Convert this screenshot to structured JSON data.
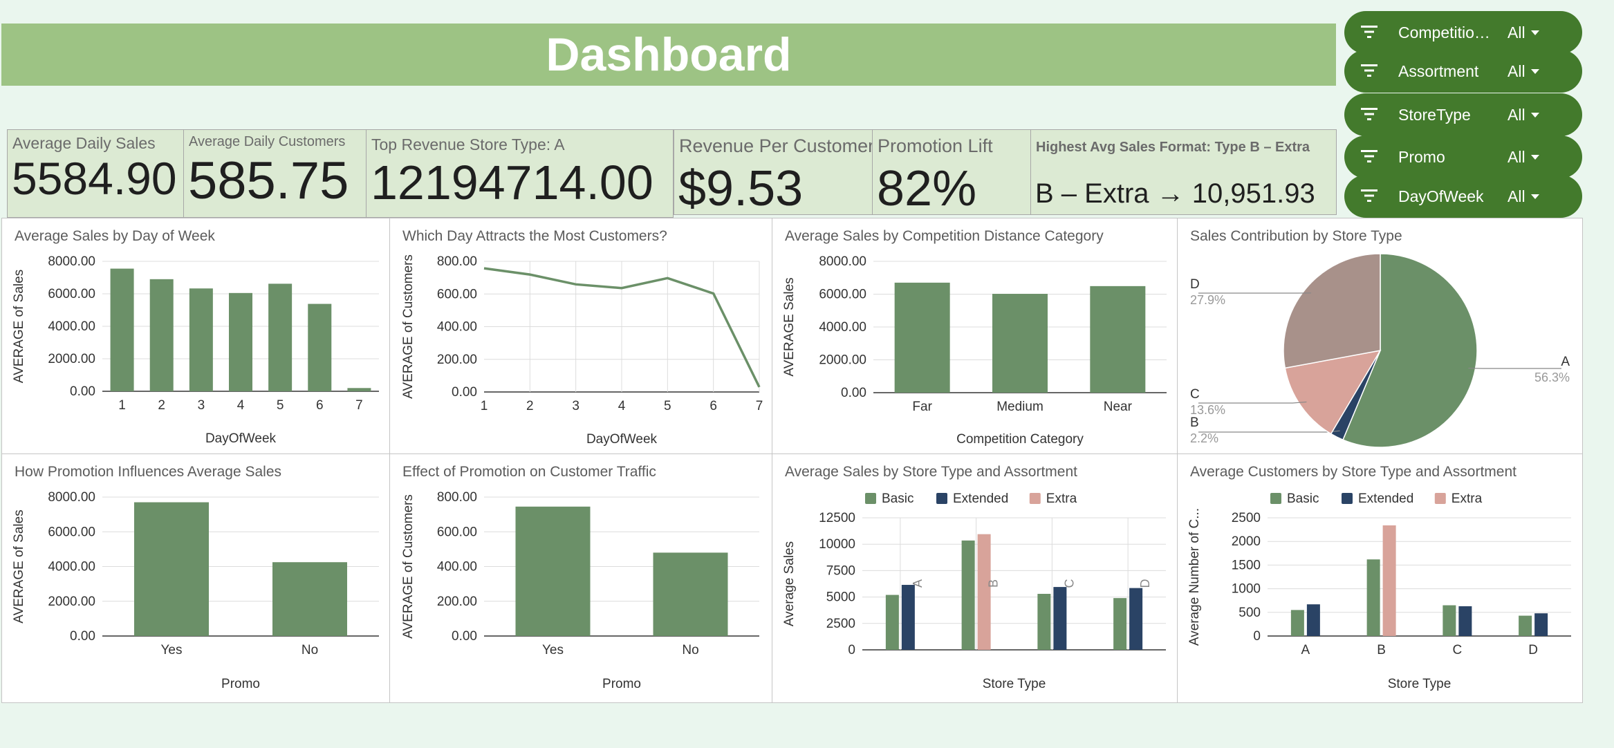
{
  "header": {
    "title": "Dashboard"
  },
  "filters": [
    {
      "label": "Competitio…",
      "value": "All",
      "icon": "filter-icon"
    },
    {
      "label": "Assortment",
      "value": "All",
      "icon": "filter-icon"
    },
    {
      "label": "StoreType",
      "value": "All",
      "icon": "filter-icon"
    },
    {
      "label": "Promo",
      "value": "All",
      "icon": "filter-icon"
    },
    {
      "label": "DayOfWeek",
      "value": "All",
      "icon": "filter-icon"
    }
  ],
  "kpis": [
    {
      "label": "Average Daily Sales",
      "value": "5584.90"
    },
    {
      "label": "Average Daily Customers",
      "value": "585.75"
    },
    {
      "label": "Top Revenue Store Type: A",
      "value": "12194714.00"
    },
    {
      "label": "Revenue Per Customer",
      "value": "$9.53"
    },
    {
      "label": "Promotion Lift",
      "value": "82%"
    },
    {
      "label": "Highest Avg Sales Format: Type B – Extra",
      "value": "B – Extra → 10,951.93"
    }
  ],
  "colors": {
    "green": "#6b9068",
    "navy": "#2a4365",
    "pink": "#d8a39a",
    "taupe": "#a8918a",
    "filter_bg": "#437a2c",
    "title_bg": "#9dc384",
    "kpi_bg": "#dcead3"
  },
  "chart_data": [
    {
      "id": "sales-by-dow",
      "type": "bar",
      "title": "Average Sales by Day of Week",
      "xlabel": "DayOfWeek",
      "ylabel": "AVERAGE of Sales",
      "categories": [
        "1",
        "2",
        "3",
        "4",
        "5",
        "6",
        "7"
      ],
      "values": [
        7550,
        6900,
        6330,
        6050,
        6620,
        5380,
        200
      ],
      "ylim": [
        0,
        8000
      ],
      "yticks": [
        "0.00",
        "2000.00",
        "4000.00",
        "6000.00",
        "8000.00"
      ]
    },
    {
      "id": "customers-by-dow",
      "type": "line",
      "title": "Which Day Attracts the Most Customers?",
      "xlabel": "DayOfWeek",
      "ylabel": "AVERAGE of Customers",
      "categories": [
        "1",
        "2",
        "3",
        "4",
        "5",
        "6",
        "7"
      ],
      "values": [
        757,
        719,
        659,
        636,
        697,
        603,
        30
      ],
      "ylim": [
        0,
        800
      ],
      "yticks": [
        "0.00",
        "200.00",
        "400.00",
        "600.00",
        "800.00"
      ]
    },
    {
      "id": "sales-by-competition",
      "type": "bar",
      "title": "Average Sales by Competition Distance Category",
      "xlabel": "Competition Category",
      "ylabel": "AVERAGE Sales",
      "categories": [
        "Far",
        "Medium",
        "Near"
      ],
      "values": [
        6700,
        6020,
        6490
      ],
      "ylim": [
        0,
        8000
      ],
      "yticks": [
        "0.00",
        "2000.00",
        "4000.00",
        "6000.00",
        "8000.00"
      ]
    },
    {
      "id": "sales-contribution",
      "type": "pie",
      "title": "Sales Contribution by Store Type",
      "slices": [
        {
          "label": "A",
          "value": 56.3,
          "pct": "56.3%",
          "color": "#6b9068"
        },
        {
          "label": "B",
          "value": 2.2,
          "pct": "2.2%",
          "color": "#2a4365"
        },
        {
          "label": "C",
          "value": 13.6,
          "pct": "13.6%",
          "color": "#d8a39a"
        },
        {
          "label": "D",
          "value": 27.9,
          "pct": "27.9%",
          "color": "#a8918a"
        }
      ]
    },
    {
      "id": "promo-sales",
      "type": "bar",
      "title": "How Promotion Influences Average Sales",
      "xlabel": "Promo",
      "ylabel": "AVERAGE of Sales",
      "categories": [
        "Yes",
        "No"
      ],
      "values": [
        7700,
        4250
      ],
      "ylim": [
        0,
        8000
      ],
      "yticks": [
        "0.00",
        "2000.00",
        "4000.00",
        "6000.00",
        "8000.00"
      ]
    },
    {
      "id": "promo-customers",
      "type": "bar",
      "title": "Effect of Promotion on Customer Traffic",
      "xlabel": "Promo",
      "ylabel": "AVERAGE of Customers",
      "categories": [
        "Yes",
        "No"
      ],
      "values": [
        745,
        480
      ],
      "ylim": [
        0,
        800
      ],
      "yticks": [
        "0.00",
        "200.00",
        "400.00",
        "600.00",
        "800.00"
      ]
    },
    {
      "id": "sales-store-assortment",
      "type": "bar",
      "title": "Average Sales by Store Type and Assortment",
      "xlabel": "Store Type",
      "ylabel": "Average Sales",
      "categories": [
        "A",
        "B",
        "C",
        "D"
      ],
      "series": [
        {
          "name": "Basic",
          "color": "#6b9068",
          "values": [
            5200,
            10350,
            5300,
            4900
          ]
        },
        {
          "name": "Extended",
          "color": "#2a4365",
          "values": [
            6150,
            null,
            5950,
            5850
          ]
        },
        {
          "name": "Extra",
          "color": "#d8a39a",
          "values": [
            null,
            10950,
            null,
            null
          ]
        }
      ],
      "ylim": [
        0,
        12500
      ],
      "yticks": [
        "0",
        "2500",
        "5000",
        "7500",
        "10000",
        "12500"
      ]
    },
    {
      "id": "customers-store-assortment",
      "type": "bar",
      "title": "Average Customers by Store Type and Assortment",
      "xlabel": "Store Type",
      "ylabel": "Average Number of C...",
      "categories": [
        "A",
        "B",
        "C",
        "D"
      ],
      "series": [
        {
          "name": "Basic",
          "color": "#6b9068",
          "values": [
            550,
            1620,
            650,
            430
          ]
        },
        {
          "name": "Extended",
          "color": "#2a4365",
          "values": [
            670,
            null,
            630,
            480
          ]
        },
        {
          "name": "Extra",
          "color": "#d8a39a",
          "values": [
            null,
            2340,
            null,
            null
          ]
        }
      ],
      "ylim": [
        0,
        2500
      ],
      "yticks": [
        "0",
        "500",
        "1000",
        "1500",
        "2000",
        "2500"
      ]
    }
  ]
}
